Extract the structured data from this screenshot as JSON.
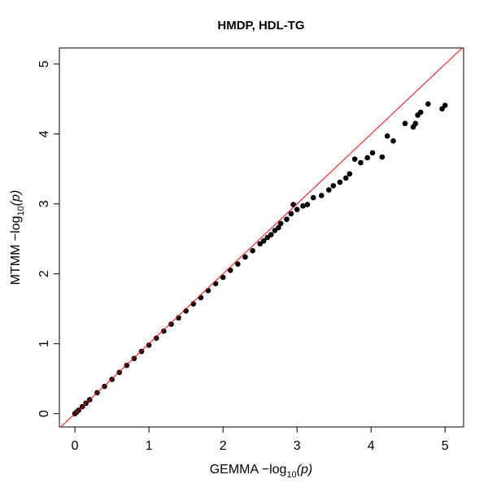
{
  "chart_data": {
    "type": "scatter",
    "title": "HMDP, HDL-TG",
    "xlabel": "GEMMA  −log",
    "xlabel_sub": "10",
    "xlabel_arg": "(p)",
    "ylabel": "MTMM  −log",
    "ylabel_sub": "10",
    "ylabel_arg": "(p)",
    "xlim": [
      -0.21,
      5.25
    ],
    "ylim": [
      -0.19,
      5.23
    ],
    "xticks": [
      0,
      1,
      2,
      3,
      4,
      5
    ],
    "yticks": [
      0,
      1,
      2,
      3,
      4,
      5
    ],
    "color": "#000000",
    "diagonal": true,
    "diagonal_color": "#ff0000",
    "x": [
      0,
      0.02,
      0.05,
      0.1,
      0.15,
      0.2,
      0.3,
      0.4,
      0.5,
      0.6,
      0.7,
      0.8,
      0.9,
      1.0,
      1.1,
      1.2,
      1.3,
      1.4,
      1.5,
      1.6,
      1.7,
      1.8,
      1.9,
      2.0,
      2.1,
      2.2,
      2.3,
      2.4,
      2.5,
      2.55,
      2.6,
      2.65,
      2.7,
      2.75,
      2.78,
      2.86,
      2.92,
      2.95,
      3.0,
      3.08,
      3.14,
      3.22,
      3.33,
      3.43,
      3.49,
      3.58,
      3.66,
      3.71,
      3.78,
      3.86,
      3.95,
      4.02,
      4.15,
      4.22,
      4.3,
      4.46,
      4.57,
      4.6,
      4.63,
      4.67,
      4.77,
      4.96,
      5.0
    ],
    "values": [
      0,
      0.02,
      0.05,
      0.1,
      0.15,
      0.2,
      0.3,
      0.39,
      0.49,
      0.59,
      0.69,
      0.79,
      0.89,
      0.98,
      1.08,
      1.18,
      1.28,
      1.37,
      1.47,
      1.57,
      1.66,
      1.76,
      1.86,
      1.95,
      2.05,
      2.14,
      2.24,
      2.33,
      2.43,
      2.47,
      2.52,
      2.56,
      2.62,
      2.66,
      2.72,
      2.78,
      2.86,
      2.99,
      2.92,
      2.97,
      2.99,
      3.09,
      3.12,
      3.2,
      3.26,
      3.31,
      3.37,
      3.43,
      3.64,
      3.59,
      3.66,
      3.73,
      3.67,
      3.97,
      3.9,
      4.15,
      4.1,
      4.15,
      4.27,
      4.31,
      4.43,
      4.36,
      4.41
    ]
  }
}
